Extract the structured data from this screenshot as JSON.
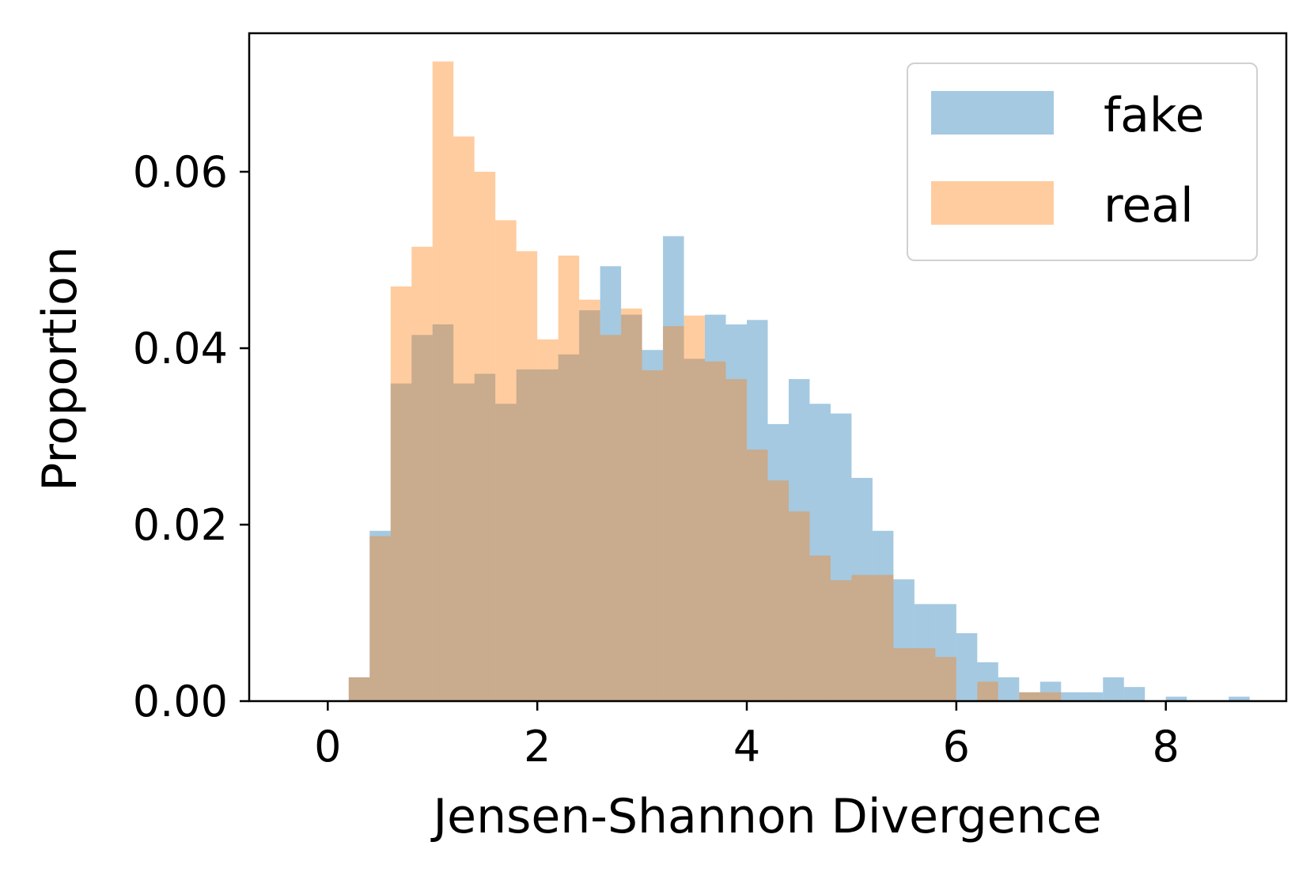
{
  "chart_data": {
    "type": "bar",
    "subtype": "overlapping-histogram",
    "xlabel": "Jensen-Shannon Divergence",
    "ylabel": "Proportion",
    "xlim": [
      -0.75,
      9.15
    ],
    "ylim": [
      0,
      0.0757
    ],
    "xticks": [
      0,
      2,
      4,
      6,
      8
    ],
    "xtick_labels": [
      "0",
      "2",
      "4",
      "6",
      "8"
    ],
    "yticks": [
      0,
      0.02,
      0.04,
      0.06
    ],
    "ytick_labels": [
      "0.00",
      "0.02",
      "0.04",
      "0.06"
    ],
    "grid": false,
    "legend_position": "top-right",
    "bin_edges": [
      0.2,
      0.4,
      0.6,
      0.8,
      1.0,
      1.2,
      1.4,
      1.6,
      1.8,
      2.0,
      2.2,
      2.4,
      2.6,
      2.8,
      3.0,
      3.2,
      3.4,
      3.6,
      3.8,
      4.0,
      4.2,
      4.4,
      4.6,
      4.8,
      5.0,
      5.2,
      5.4,
      5.6,
      5.8,
      6.0,
      6.2,
      6.4,
      6.6,
      6.8,
      7.0,
      7.2,
      7.4,
      7.6,
      7.8,
      8.0,
      8.2,
      8.4,
      8.6,
      8.8
    ],
    "series": [
      {
        "name": "fake",
        "color": "#1f77b4",
        "alpha": 0.4,
        "values": [
          0.0027,
          0.0193,
          0.036,
          0.0415,
          0.0427,
          0.036,
          0.0371,
          0.0337,
          0.0376,
          0.0376,
          0.0393,
          0.0443,
          0.0493,
          0.0438,
          0.0398,
          0.0527,
          0.0388,
          0.0438,
          0.0427,
          0.0432,
          0.0314,
          0.0365,
          0.0337,
          0.0326,
          0.0253,
          0.0193,
          0.0138,
          0.011,
          0.011,
          0.0077,
          0.0044,
          0.0027,
          0.001,
          0.0022,
          0.001,
          0.001,
          0.0027,
          0.0016,
          0,
          0.0005,
          0,
          0,
          0.0005
        ]
      },
      {
        "name": "real",
        "color": "#ff7f0e",
        "alpha": 0.4,
        "values": [
          0.0027,
          0.0187,
          0.047,
          0.0515,
          0.0725,
          0.064,
          0.06,
          0.0545,
          0.051,
          0.041,
          0.0505,
          0.0455,
          0.0415,
          0.0445,
          0.0375,
          0.0425,
          0.0437,
          0.0385,
          0.0365,
          0.0285,
          0.025,
          0.0215,
          0.0165,
          0.0137,
          0.0143,
          0.0143,
          0.006,
          0.006,
          0.005,
          0,
          0.0022,
          0,
          0.001,
          0.001,
          0,
          0,
          0,
          0,
          0,
          0,
          0,
          0,
          0
        ]
      }
    ]
  }
}
